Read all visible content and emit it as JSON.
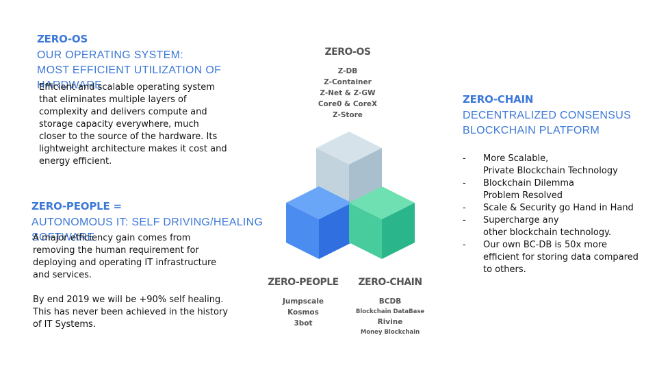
{
  "zero_os": {
    "title": "ZERO-OS",
    "subtitle_line1": "OUR OPERATING SYSTEM:",
    "subtitle_line2": "MOST EFFICIENT UTILIZATION OF HARDWARE",
    "body": "Efficient and scalable operating system\nthat eliminates multiple layers of\ncomplexity and delivers compute and\nstorage capacity everywhere, much\ncloser to the source of the hardware. Its\nlightweight architecture makes it cost and\nenergy efficient."
  },
  "zero_people": {
    "title": "ZERO-PEOPLE =",
    "subtitle": "AUTONOMOUS IT: SELF DRIVING/HEALING SOFTWARE",
    "body_p1": "A major efficiency gain comes from\nremoving the human requirement for\ndeploying and operating IT infrastructure\nand services.",
    "body_p2": "By end 2019 we will be +90% self healing.\nThis has never been achieved in the history\nof IT Systems."
  },
  "zero_chain": {
    "title": "ZERO-CHAIN",
    "subtitle_line1": "DECENTRALIZED CONSENSUS",
    "subtitle_line2": "BLOCKCHAIN PLATFORM",
    "bullets": [
      "More Scalable,\nPrivate Blockchain Technology",
      "Blockchain Dilemma\nProblem Resolved",
      "Scale & Security go Hand in Hand",
      "Supercharge any\nother blockchain technology.",
      "Our own BC-DB is 50x more\nefficient for storing data compared\nto others."
    ]
  },
  "diagram": {
    "top": {
      "label": "ZERO-OS",
      "items": [
        "Z-DB",
        "Z-Container",
        "Z-Net & Z-GW",
        "Core0 & CoreX",
        "Z-Store"
      ]
    },
    "left": {
      "label": "ZERO-PEOPLE",
      "items": [
        "Jumpscale",
        "Kosmos",
        "3bot"
      ]
    },
    "right": {
      "label": "ZERO-CHAIN",
      "item1": "BCDB",
      "item1_sub": "Blockchain DataBase",
      "item2": "Rivine",
      "item2_sub": "Money Blockchain"
    },
    "colors": {
      "top_cube": [
        "#d6e2ea",
        "#a9bfcd",
        "#c3d3de"
      ],
      "left_cube": [
        "#6aa6f8",
        "#2f6fe0",
        "#4a8cf0"
      ],
      "right_cube": [
        "#6fe0b2",
        "#2ab58a",
        "#48cc9e"
      ]
    }
  }
}
